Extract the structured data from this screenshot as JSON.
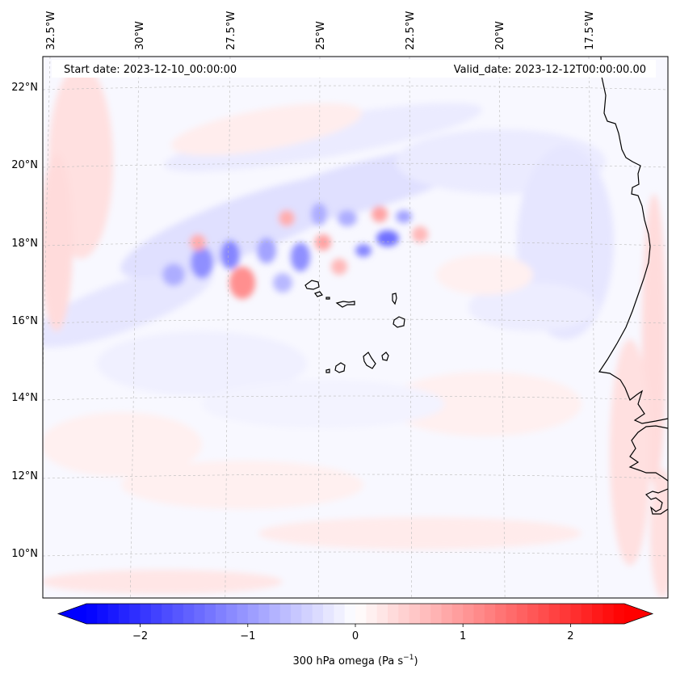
{
  "header": {
    "start_date": "Start date: 2023-12-10_00:00:00",
    "valid_date": "Valid_date: 2023-12-12T00:00:00.00"
  },
  "map": {
    "field": "300 hPa omega",
    "lon_labels": [
      "32.5°W",
      "30°W",
      "27.5°W",
      "25°W",
      "22.5°W",
      "20°W",
      "17.5°W"
    ],
    "lat_labels": [
      "22°N",
      "20°N",
      "18°N",
      "16°N",
      "14°N",
      "12°N",
      "10°N"
    ],
    "gridlines": true,
    "land_features": [
      "Cape Verde islands",
      "West African coastline"
    ]
  },
  "colorbar": {
    "label": "300 hPa omega (Pa s",
    "label_exp": "−1",
    "label_tail": ")",
    "cmap": "bwr",
    "min_color": "#0000ff",
    "mid_color": "#ffffff",
    "max_color": "#ff0000",
    "vmin": -2.5,
    "vmax": 2.5,
    "levels": 50,
    "extend": "both",
    "tick_values": [
      -2,
      -1,
      0,
      1,
      2
    ],
    "tick_labels": [
      "−2",
      "−1",
      "0",
      "1",
      "2"
    ]
  }
}
